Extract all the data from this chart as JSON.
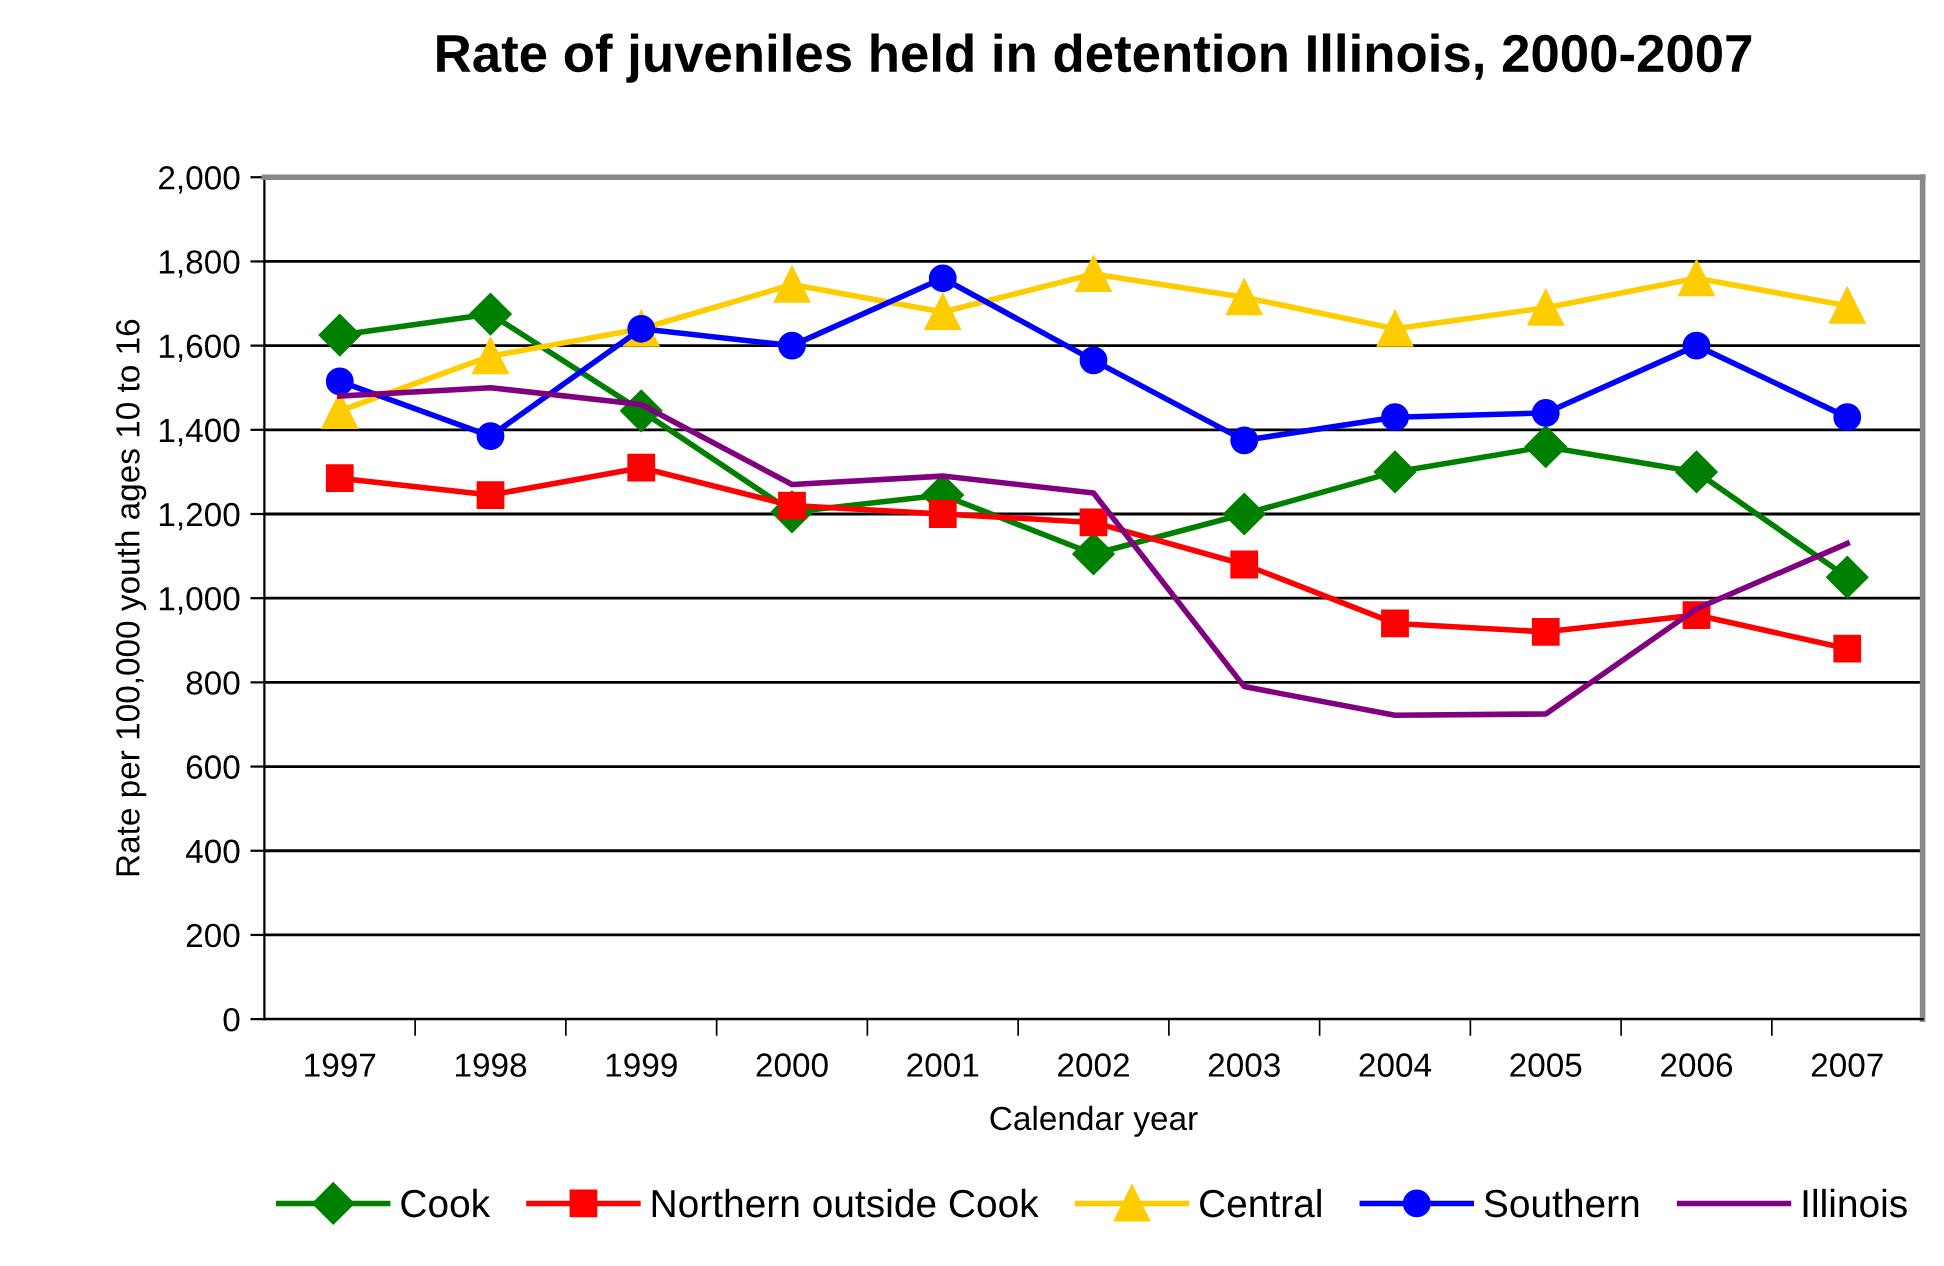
{
  "chart_data": {
    "type": "line",
    "title": "Rate of juveniles held in detention Illinois, 2000-2007",
    "xlabel": "Calendar year",
    "ylabel": "Rate per 100,000 youth ages 10 to 16",
    "categories": [
      "1997",
      "1998",
      "1999",
      "2000",
      "2001",
      "2002",
      "2003",
      "2004",
      "2005",
      "2006",
      "2007"
    ],
    "series": [
      {
        "name": "Cook",
        "color": "#008000",
        "marker": "diamond",
        "values": [
          1625,
          1675,
          1445,
          1205,
          1245,
          1105,
          1200,
          1300,
          1360,
          1300,
          1050
        ]
      },
      {
        "name": "Northern outside Cook",
        "color": "#ff0000",
        "marker": "square",
        "values": [
          1285,
          1245,
          1310,
          1220,
          1200,
          1180,
          1080,
          940,
          920,
          960,
          880
        ]
      },
      {
        "name": "Central",
        "color": "#ffcc00",
        "marker": "triangle",
        "values": [
          1445,
          1575,
          1640,
          1745,
          1680,
          1770,
          1715,
          1640,
          1690,
          1760,
          1695
        ]
      },
      {
        "name": "Southern",
        "color": "#0000ff",
        "marker": "circle",
        "values": [
          1515,
          1385,
          1640,
          1600,
          1760,
          1565,
          1375,
          1430,
          1440,
          1600,
          1430
        ]
      },
      {
        "name": "Illinois",
        "color": "#800080",
        "marker": "none",
        "values": [
          1480,
          1500,
          1460,
          1270,
          1290,
          1250,
          790,
          722,
          725,
          975,
          1130
        ]
      }
    ],
    "ylim": [
      0,
      2000
    ],
    "yticks": [
      {
        "value": 0,
        "label": "0"
      },
      {
        "value": 200,
        "label": "200"
      },
      {
        "value": 400,
        "label": "400"
      },
      {
        "value": 600,
        "label": "600"
      },
      {
        "value": 800,
        "label": "800"
      },
      {
        "value": 1000,
        "label": "1,000"
      },
      {
        "value": 1200,
        "label": "1,200"
      },
      {
        "value": 1400,
        "label": "1,400"
      },
      {
        "value": 1600,
        "label": "1,600"
      },
      {
        "value": 1800,
        "label": "1,800"
      },
      {
        "value": 2000,
        "label": "2,000"
      }
    ],
    "grid": "y",
    "legend": "bottom",
    "line_style": "solid"
  }
}
